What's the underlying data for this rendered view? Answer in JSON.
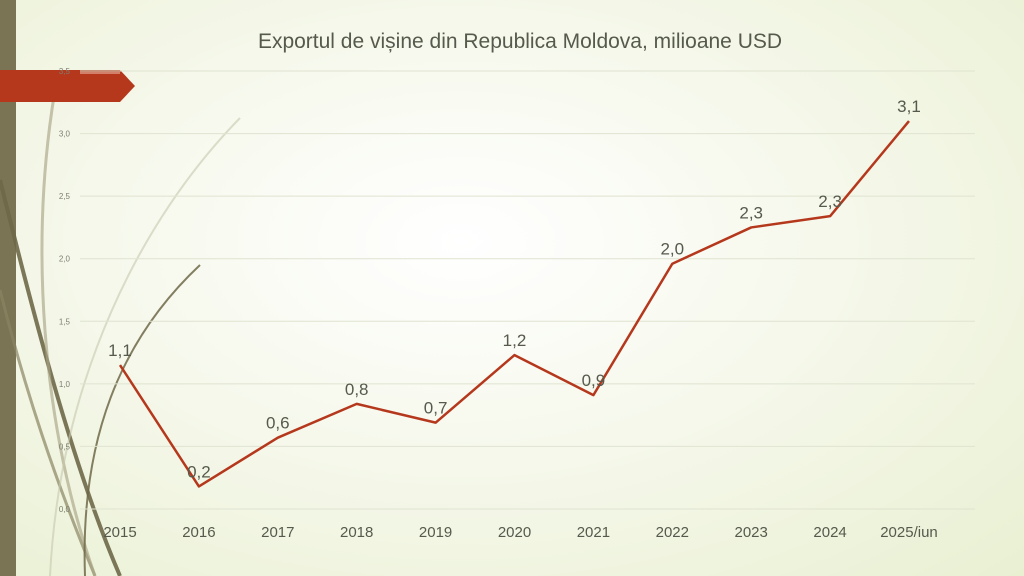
{
  "chart_data": {
    "type": "line",
    "title": "Exportul de vișine din Republica Moldova, milioane USD",
    "categories": [
      "2015",
      "2016",
      "2017",
      "2018",
      "2019",
      "2020",
      "2021",
      "2022",
      "2023",
      "2024",
      "2025/iun"
    ],
    "series": [
      {
        "values": [
          1.15,
          0.18,
          0.57,
          0.84,
          0.69,
          1.23,
          0.91,
          1.96,
          2.25,
          2.34,
          3.1
        ],
        "labels": [
          "1,1",
          "0,2",
          "0,6",
          "0,8",
          "0,7",
          "1,2",
          "0,9",
          "2,0",
          "2,3",
          "2,3",
          "3,1"
        ],
        "color": "#b5381d"
      }
    ],
    "yaxis": {
      "ticks": [
        0,
        0.5,
        1,
        1.5,
        2,
        2.5,
        3,
        3.5
      ],
      "tick_labels": [
        "0,0",
        "0,5",
        "1,0",
        "1,5",
        "2,0",
        "2,5",
        "3,0",
        "3,5"
      ],
      "ylim": [
        0,
        3.5
      ]
    },
    "grid": true,
    "legend": "none"
  },
  "theme": {
    "accent": "#b5381d",
    "sidebar": "#7a7354",
    "grid_color": "#dfe3d0",
    "text_color": "#555a4c"
  }
}
